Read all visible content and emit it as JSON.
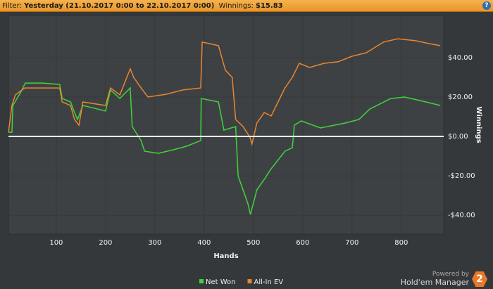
{
  "header": {
    "filter_label": "Filter:",
    "filter_value": "Yesterday (21.10.2017 0:00 to 22.10.2017 0:00)",
    "winnings_label": "Winnings:",
    "winnings_value": "$15.83",
    "help": "?"
  },
  "chart_data": {
    "type": "line",
    "x_label": "Hands",
    "y_label": "Winnings",
    "xlim": [
      3,
      886
    ],
    "ylim": [
      -49.6,
      61.4
    ],
    "xticks": [
      100,
      200,
      300,
      400,
      500,
      600,
      700,
      800
    ],
    "yticks": [
      {
        "value": -40,
        "label": "-$40.00"
      },
      {
        "value": -20,
        "label": "-$20.00"
      },
      {
        "value": 0,
        "label": "$0.00"
      },
      {
        "value": 20,
        "label": "$20.00"
      },
      {
        "value": 40,
        "label": "$40.00"
      }
    ],
    "grid": true,
    "legend": "bottom",
    "series": [
      {
        "name": "Net Won",
        "color": "#3fd43b",
        "x": [
          3,
          10,
          12,
          29,
          37,
          72,
          107,
          112,
          129,
          137,
          143,
          154,
          200,
          210,
          229,
          250,
          254,
          272,
          279,
          307,
          343,
          364,
          393,
          394,
          429,
          440,
          464,
          469,
          489,
          494,
          507,
          522,
          536,
          564,
          579,
          583,
          597,
          636,
          686,
          714,
          736,
          779,
          807,
          850,
          879
        ],
        "values": [
          2.1,
          2.1,
          15.7,
          22.9,
          27.1,
          27.1,
          26.4,
          19.3,
          17.5,
          12.1,
          8.6,
          15.7,
          12.9,
          23.6,
          19.3,
          24.6,
          5.0,
          -2.1,
          -7.5,
          -8.6,
          -6.4,
          -5.0,
          -2.1,
          19.3,
          17.5,
          3.2,
          5.0,
          -20.0,
          -34.3,
          -39.6,
          -27.1,
          -21.8,
          -16.4,
          -7.5,
          -5.7,
          5.7,
          7.9,
          4.3,
          6.8,
          8.6,
          13.9,
          19.3,
          20.0,
          17.5,
          15.7
        ]
      },
      {
        "name": "All-In EV",
        "color": "#e8862e",
        "x": [
          3,
          10,
          17,
          36,
          72,
          107,
          112,
          129,
          137,
          146,
          154,
          200,
          210,
          229,
          250,
          257,
          272,
          286,
          322,
          357,
          393,
          396,
          429,
          443,
          457,
          464,
          479,
          493,
          497,
          507,
          522,
          536,
          550,
          564,
          579,
          593,
          614,
          643,
          672,
          700,
          729,
          764,
          793,
          829,
          857,
          879
        ],
        "values": [
          2.1,
          15.7,
          21.1,
          24.6,
          24.6,
          24.6,
          17.5,
          15.7,
          8.6,
          5.7,
          17.5,
          15.7,
          24.6,
          21.1,
          34.3,
          30.0,
          24.6,
          20.0,
          21.4,
          23.6,
          24.6,
          47.9,
          46.1,
          33.6,
          30.0,
          8.6,
          5.0,
          -0.4,
          -3.9,
          6.8,
          12.1,
          10.4,
          17.5,
          24.6,
          30.0,
          37.1,
          35.0,
          37.1,
          37.9,
          40.7,
          42.5,
          47.9,
          49.6,
          48.6,
          47.1,
          46.1
        ]
      }
    ]
  },
  "footer": {
    "powered_by": "Powered by",
    "product": "Hold'em Manager",
    "logo": "2"
  }
}
